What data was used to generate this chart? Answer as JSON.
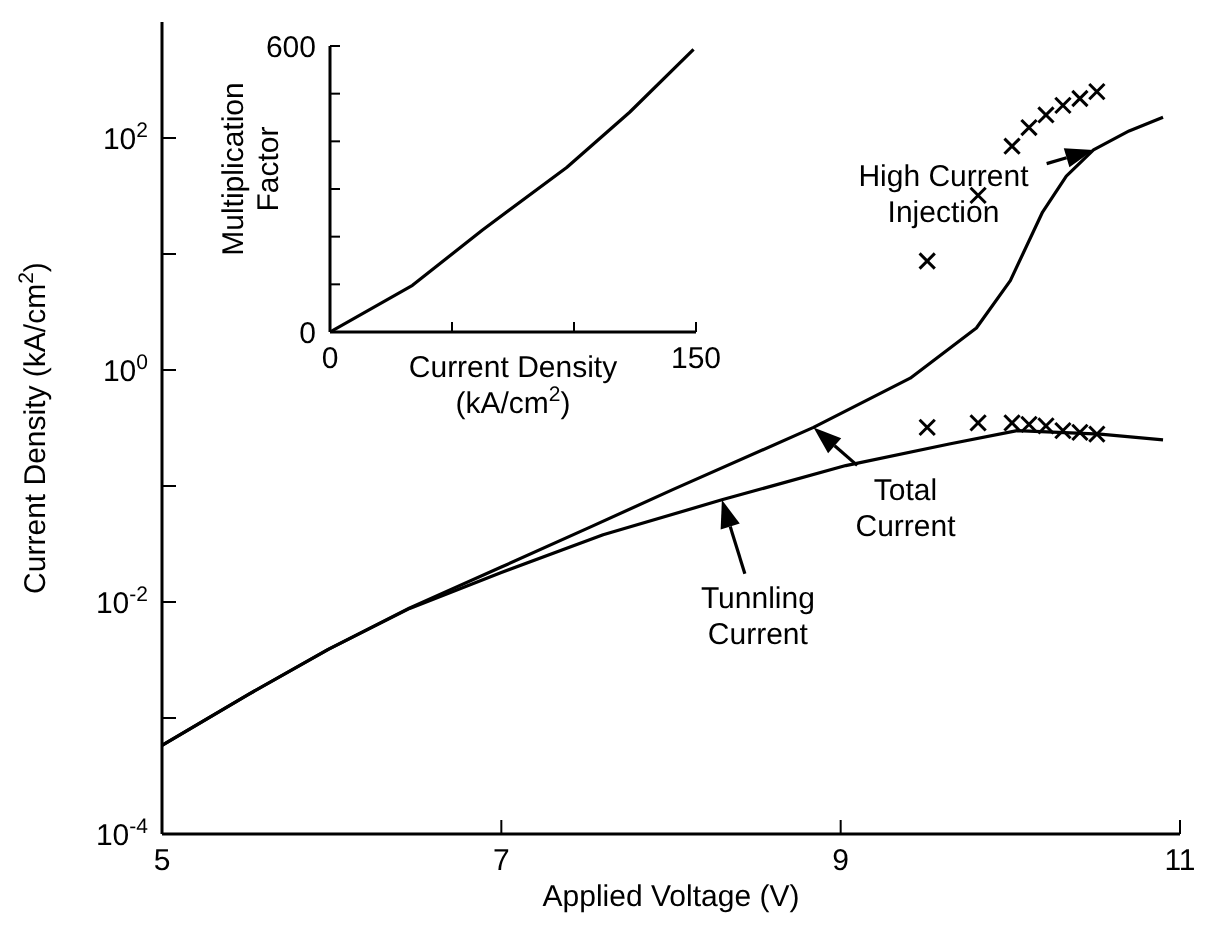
{
  "chart_data": [
    {
      "type": "line",
      "xlabel": "Applied Voltage (V)",
      "ylabel": "Current Density (kA/cm$^{2}$)",
      "log": "y",
      "grid": false,
      "legend": false,
      "line_style": "solid",
      "marker": "none",
      "xlim": [
        5,
        11
      ],
      "xticks": [
        5,
        7,
        9,
        11
      ],
      "ylim": [
        0.0001,
        1000
      ],
      "yticks": [
        {
          "value": 0.0001,
          "label": "10$^{-4}$"
        },
        {
          "value": 0.001,
          "label": null
        },
        {
          "value": 0.01,
          "label": "10$^{-2}$"
        },
        {
          "value": 0.1,
          "label": null
        },
        {
          "value": 1,
          "label": "10$^{0}$"
        },
        {
          "value": 10,
          "label": null
        },
        {
          "value": 100,
          "label": "10$^{2}$"
        }
      ],
      "series": [
        {
          "type": "line",
          "color": "#000000",
          "x": [
            5,
            5.51,
            5.98,
            6.46,
            7.0,
            7.52,
            8.01,
            8.84,
            9.41,
            9.8,
            10.0,
            10.19,
            10.33,
            10.49,
            10.7,
            10.9
          ],
          "values": [
            0.00058,
            0.0016,
            0.0039,
            0.0089,
            0.02,
            0.044,
            0.093,
            0.32,
            0.85,
            2.3,
            5.9,
            23,
            47,
            79,
            115,
            151
          ]
        },
        {
          "type": "line",
          "color": "#000000",
          "x": [
            5,
            5.51,
            5.98,
            6.46,
            7.0,
            7.6,
            8.3,
            9.03,
            9.64,
            10.04,
            10.53,
            10.9
          ],
          "values": [
            0.00058,
            0.0016,
            0.0039,
            0.0088,
            0.018,
            0.038,
            0.076,
            0.15,
            0.23,
            0.3,
            0.28,
            0.25
          ]
        },
        {
          "type": "scatter",
          "color": "#000000",
          "marker": "cross",
          "x": [
            9.51,
            9.81,
            10.01,
            10.11,
            10.21,
            10.31,
            10.41,
            10.51
          ],
          "values": [
            8.7,
            32,
            85,
            123,
            158,
            191,
            219,
            251
          ]
        },
        {
          "type": "scatter",
          "color": "#000000",
          "marker": "cross",
          "x": [
            9.51,
            9.81,
            10.01,
            10.11,
            10.21,
            10.31,
            10.41,
            10.51
          ],
          "values": [
            0.32,
            0.35,
            0.35,
            0.34,
            0.33,
            0.3,
            0.29,
            0.28
          ]
        }
      ],
      "annotations": [
        {
          "text": "High Current Injection",
          "x": 10.49,
          "y": 79
        },
        {
          "text": "Total Current",
          "x": 8.84,
          "y": 0.32
        },
        {
          "text": "Tunnling Current",
          "x": 8.3,
          "y": 0.076
        }
      ]
    },
    {
      "type": "line",
      "xlabel": "Current Density (kA/cm$^{2}$)",
      "ylabel": "Multiplication Factor",
      "grid": false,
      "legend": false,
      "line_style": "solid",
      "marker": "none",
      "xlim": [
        0,
        150
      ],
      "xticks": [
        0,
        {
          "value": 50,
          "label": null
        },
        {
          "value": 100,
          "label": null
        },
        150
      ],
      "ylim": [
        0,
        600
      ],
      "yticks": [
        0,
        {
          "value": 100,
          "label": null
        },
        {
          "value": 200,
          "label": null
        },
        {
          "value": 300,
          "label": null
        },
        {
          "value": 400,
          "label": null
        },
        {
          "value": 500,
          "label": null
        },
        600
      ],
      "series": [
        {
          "type": "line",
          "color": "#000000",
          "x": [
            0,
            33.8,
            62.5,
            97,
            122.8,
            149
          ],
          "values": [
            0,
            98,
            214,
            345,
            461,
            593
          ]
        }
      ]
    }
  ]
}
